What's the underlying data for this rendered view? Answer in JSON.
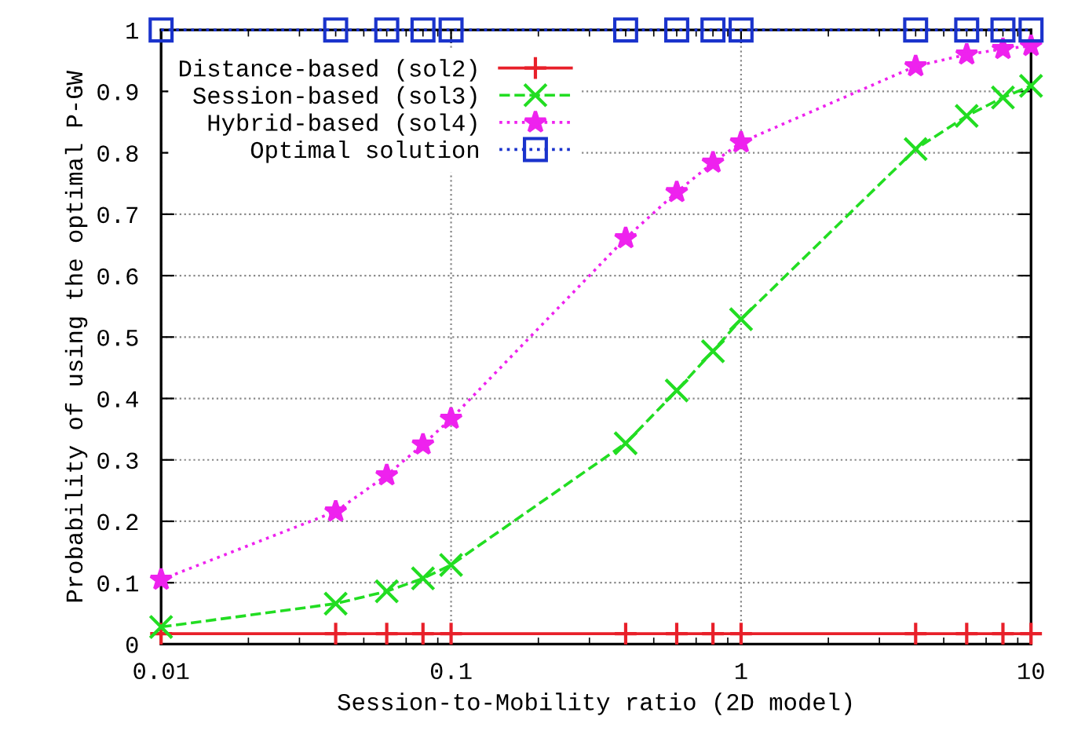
{
  "chart_data": {
    "type": "line",
    "xlabel": "Session-to-Mobility ratio (2D model)",
    "ylabel": "Probability of using the optimal P-GW",
    "x": [
      0.01,
      0.04,
      0.06,
      0.08,
      0.1,
      0.4,
      0.6,
      0.8,
      1,
      4,
      6,
      8,
      10
    ],
    "series": [
      {
        "name": "Distance-based (sol2)",
        "color": "#e8202a",
        "marker": "plus",
        "line_style": "solid",
        "values": [
          0.017,
          0.017,
          0.017,
          0.017,
          0.017,
          0.017,
          0.017,
          0.017,
          0.017,
          0.017,
          0.017,
          0.017,
          0.017
        ]
      },
      {
        "name": "Session-based (sol3)",
        "color": "#22dd22",
        "marker": "cross",
        "line_style": "dashed",
        "values": [
          0.028,
          0.066,
          0.086,
          0.107,
          0.129,
          0.327,
          0.413,
          0.477,
          0.529,
          0.806,
          0.86,
          0.89,
          0.909
        ]
      },
      {
        "name": "Hybrid-based (sol4)",
        "color": "#ee22ee",
        "marker": "star",
        "line_style": "dotted",
        "values": [
          0.105,
          0.216,
          0.275,
          0.325,
          0.367,
          0.661,
          0.736,
          0.784,
          0.817,
          0.941,
          0.96,
          0.969,
          0.974
        ]
      },
      {
        "name": "Optimal solution",
        "color": "#1a33cc",
        "marker": "square",
        "line_style": "dotted",
        "values": [
          1,
          1,
          1,
          1,
          1,
          1,
          1,
          1,
          1,
          1,
          1,
          1,
          1
        ]
      }
    ],
    "log": "x",
    "xlim": [
      0.01,
      10
    ],
    "xticks": [
      0.01,
      0.1,
      1,
      10
    ],
    "ylim": [
      0,
      1
    ],
    "yticks": [
      0,
      0.1,
      0.2,
      0.3,
      0.4,
      0.5,
      0.6,
      0.7,
      0.8,
      0.9,
      1
    ],
    "grid": true,
    "legend": "top left"
  }
}
